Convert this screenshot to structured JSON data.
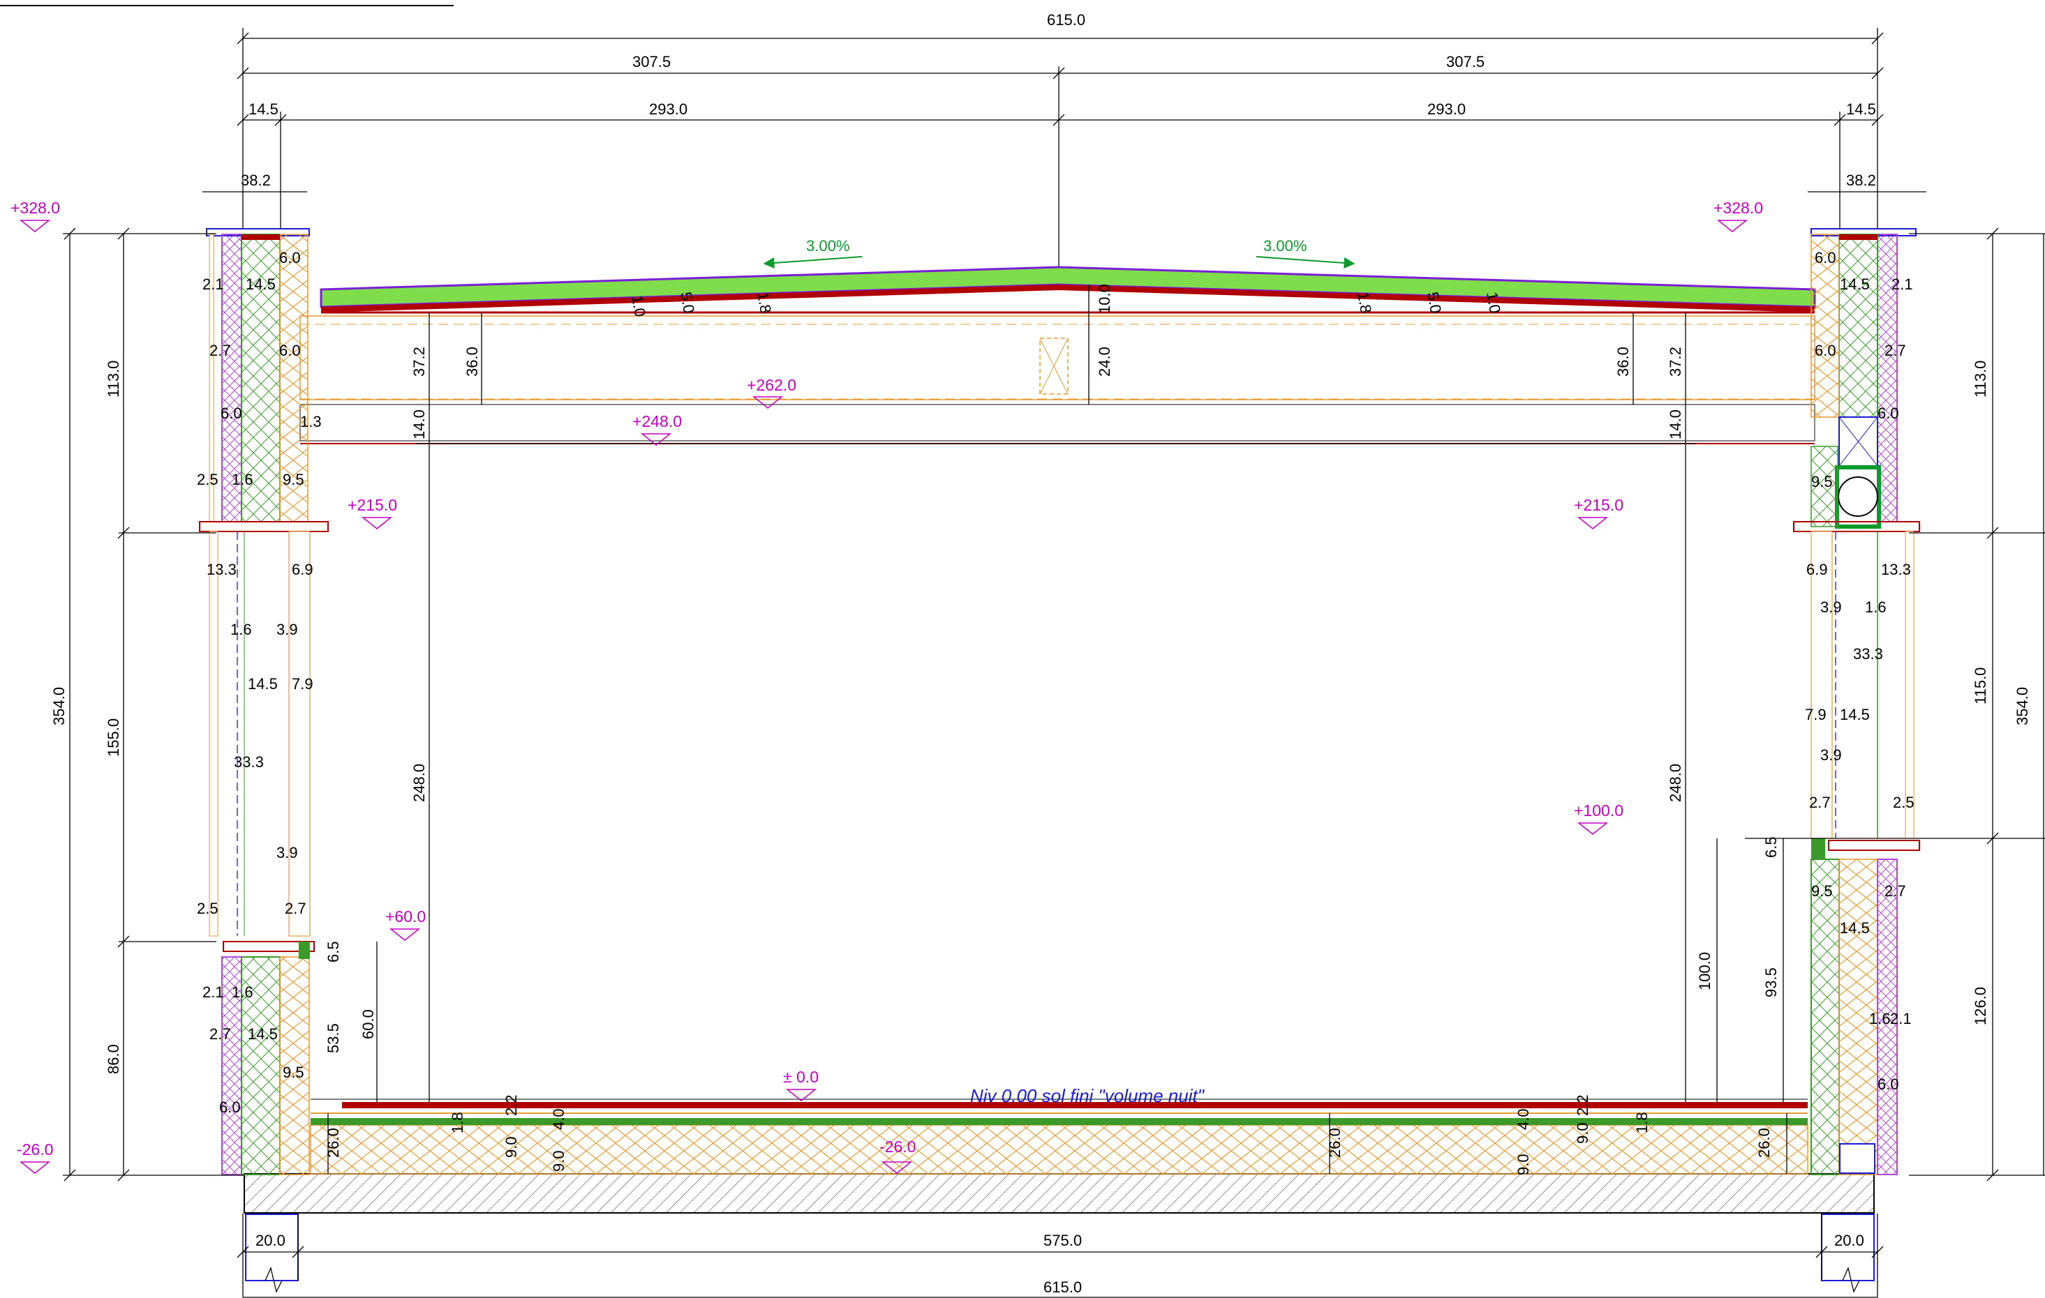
{
  "dimensions": {
    "top_total": "615.0",
    "top_half_left": "307.5",
    "top_half_right": "307.5",
    "top_left_edge": "14.5",
    "top_inner_left": "293.0",
    "top_inner_right": "293.0",
    "top_right_edge": "14.5",
    "acrotere_left": "38.2",
    "acrotere_right": "38.2",
    "bottom_total": "615.0",
    "bottom_inner": "575.0",
    "bottom_left_footing": "20.0",
    "bottom_right_footing": "20.0",
    "left_total_height": "354.0",
    "left_upper": "113.0",
    "left_middle": "155.0",
    "left_lower": "86.0",
    "right_total_height": "354.0",
    "right_upper": "113.0",
    "right_middle": "115.0",
    "right_lower": "126.0",
    "room_height_left": "248.0",
    "room_height_right": "248.0",
    "roof_beam": "37.2",
    "roof_beam_right": "37.2",
    "roof_inner": "36.0",
    "roof_inner_right": "36.0",
    "ceiling": "14.0",
    "ceiling_right": "14.0",
    "ridge_slab": "10.0",
    "ridge_block": "24.0",
    "slab": "26.0",
    "slab_mid": "26.0",
    "slab_right": "26.0",
    "sill_left_1": "53.5",
    "sill_left_2": "60.0",
    "sill_left_3": "6.5",
    "sill_right_1": "100.0",
    "sill_right_2": "93.5",
    "sill_right_3": "6.5"
  },
  "small_dims": {
    "a": "6.0",
    "b": "2.1",
    "c": "14.5",
    "d": "2.7",
    "e": "6.0",
    "f": "1.3",
    "g": "2.5",
    "h": "1.6",
    "i": "9.5",
    "j": "13.3",
    "k": "6.9",
    "l": "1.6",
    "m": "3.9",
    "n": "14.5",
    "o": "7.9",
    "p": "33.3",
    "q": "3.9",
    "r": "2.5",
    "s": "2.7",
    "t": "2.1",
    "u": "1.6",
    "v": "2.7",
    "w": "14.5",
    "x": "9.5",
    "y": "6.0",
    "z": "1.8",
    "aa": "2.2",
    "ab": "4.0",
    "ac": "9.0",
    "ad": "9.0",
    "ae": "1.0",
    "af": "5.0",
    "ag": "1.8",
    "ra": "6.0",
    "rb": "14.5",
    "rc": "2.1",
    "rd": "6.0",
    "re": "2.7",
    "rf": "6.0",
    "rg": "9.5",
    "rh": "6.9",
    "ri": "13.3",
    "rj": "3.9",
    "rk": "1.6",
    "rl": "33.3",
    "rm": "7.9",
    "rn": "14.5",
    "ro": "3.9",
    "rp": "2.7",
    "rq": "2.5",
    "rr": "9.5",
    "rs": "2.7",
    "rt": "14.5",
    "ru": "1.6",
    "rv": "2.1",
    "rw": "6.0",
    "rx": "4.0",
    "ry": "2.2",
    "rz": "9.0",
    "rza": "1.8",
    "rzb": "9.0",
    "rzc": "1.8",
    "rzd": "5.0",
    "rze": "1.0"
  },
  "levels": {
    "top_left": "+328.0",
    "top_right": "+328.0",
    "roof_mid": "+262.0",
    "ceiling": "+248.0",
    "lintel_left": "+215.0",
    "lintel_right": "+215.0",
    "sill_right": "+100.0",
    "sill_left": "+60.0",
    "floor": "± 0.0",
    "ground_left": "-26.0",
    "ground_mid": "-26.0"
  },
  "slopes": {
    "left": "3.00%",
    "right": "3.00%"
  },
  "note": "Niv 0.00 sol fini \"volume nuit\"",
  "colors": {
    "roof_membrane": "#7a1fd6",
    "insulation_green": "#7fdc4a",
    "structure_red": "#b00000",
    "wood_orange": "#e59a32",
    "level_magenta": "#c400c4",
    "concrete_hatch": "#444444",
    "blue_frame": "#1a1ad8"
  }
}
